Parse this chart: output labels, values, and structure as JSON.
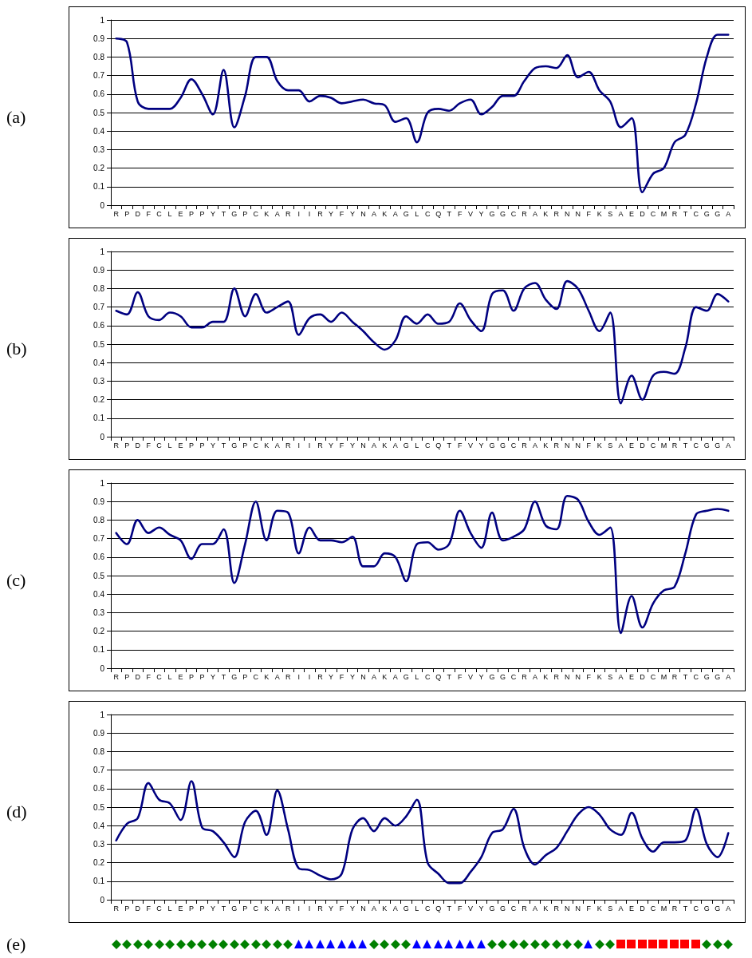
{
  "chart_data": [
    {
      "type": "line",
      "title": "(a)",
      "categories": [
        "R",
        "P",
        "D",
        "F",
        "C",
        "L",
        "E",
        "P",
        "P",
        "Y",
        "T",
        "G",
        "P",
        "C",
        "K",
        "A",
        "R",
        "I",
        "I",
        "R",
        "Y",
        "F",
        "Y",
        "N",
        "A",
        "K",
        "A",
        "G",
        "L",
        "C",
        "Q",
        "T",
        "F",
        "V",
        "Y",
        "G",
        "G",
        "C",
        "R",
        "A",
        "K",
        "R",
        "N",
        "N",
        "F",
        "K",
        "S",
        "A",
        "E",
        "D",
        "C",
        "M",
        "R",
        "T",
        "C",
        "G",
        "G",
        "A"
      ],
      "ylim": [
        0,
        1
      ],
      "yticks": [
        0,
        0.1,
        0.2,
        0.3,
        0.4,
        0.5,
        0.6,
        0.7,
        0.8,
        0.9,
        1
      ],
      "grid": "y",
      "marker": "none",
      "line_style": "solid",
      "series": [
        {
          "color": "#000080",
          "values": [
            0.9,
            0.88,
            0.56,
            0.52,
            0.52,
            0.52,
            0.58,
            0.68,
            0.6,
            0.49,
            0.73,
            0.42,
            0.59,
            0.8,
            0.8,
            0.67,
            0.62,
            0.62,
            0.56,
            0.59,
            0.58,
            0.55,
            0.56,
            0.57,
            0.55,
            0.54,
            0.45,
            0.47,
            0.34,
            0.5,
            0.52,
            0.51,
            0.55,
            0.57,
            0.49,
            0.53,
            0.59,
            0.59,
            0.67,
            0.74,
            0.75,
            0.74,
            0.81,
            0.69,
            0.72,
            0.62,
            0.56,
            0.42,
            0.47,
            0.07,
            0.17,
            0.2,
            0.34,
            0.38,
            0.55,
            0.8,
            0.92,
            0.92
          ]
        }
      ]
    },
    {
      "type": "line",
      "title": "(b)",
      "categories": [
        "R",
        "P",
        "D",
        "F",
        "C",
        "L",
        "E",
        "P",
        "P",
        "Y",
        "T",
        "G",
        "P",
        "C",
        "K",
        "A",
        "R",
        "I",
        "I",
        "R",
        "Y",
        "F",
        "Y",
        "N",
        "A",
        "K",
        "A",
        "G",
        "L",
        "C",
        "Q",
        "T",
        "F",
        "V",
        "Y",
        "G",
        "G",
        "C",
        "R",
        "A",
        "K",
        "R",
        "N",
        "N",
        "F",
        "K",
        "S",
        "A",
        "E",
        "D",
        "C",
        "M",
        "R",
        "T",
        "C",
        "G",
        "G",
        "A"
      ],
      "ylim": [
        0,
        1
      ],
      "yticks": [
        0,
        0.1,
        0.2,
        0.3,
        0.4,
        0.5,
        0.6,
        0.7,
        0.8,
        0.9,
        1
      ],
      "grid": "y",
      "marker": "none",
      "line_style": "solid",
      "series": [
        {
          "color": "#000080",
          "values": [
            0.68,
            0.66,
            0.78,
            0.65,
            0.63,
            0.67,
            0.65,
            0.59,
            0.59,
            0.62,
            0.62,
            0.8,
            0.65,
            0.77,
            0.67,
            0.7,
            0.73,
            0.55,
            0.64,
            0.66,
            0.62,
            0.67,
            0.62,
            0.57,
            0.51,
            0.47,
            0.52,
            0.65,
            0.61,
            0.66,
            0.61,
            0.62,
            0.72,
            0.63,
            0.57,
            0.77,
            0.79,
            0.68,
            0.8,
            0.83,
            0.74,
            0.69,
            0.84,
            0.8,
            0.68,
            0.57,
            0.67,
            0.18,
            0.33,
            0.2,
            0.33,
            0.35,
            0.34,
            0.48,
            0.7,
            0.68,
            0.77,
            0.73
          ]
        }
      ]
    },
    {
      "type": "line",
      "title": "(c)",
      "categories": [
        "R",
        "P",
        "D",
        "F",
        "C",
        "L",
        "E",
        "P",
        "P",
        "Y",
        "T",
        "G",
        "P",
        "C",
        "K",
        "A",
        "R",
        "I",
        "I",
        "R",
        "Y",
        "F",
        "Y",
        "N",
        "A",
        "K",
        "A",
        "G",
        "L",
        "C",
        "Q",
        "T",
        "F",
        "V",
        "Y",
        "G",
        "G",
        "C",
        "R",
        "A",
        "K",
        "R",
        "N",
        "N",
        "F",
        "K",
        "S",
        "A",
        "E",
        "D",
        "C",
        "M",
        "R",
        "T",
        "C",
        "G",
        "G",
        "A"
      ],
      "ylim": [
        0,
        1
      ],
      "yticks": [
        0,
        0.1,
        0.2,
        0.3,
        0.4,
        0.5,
        0.6,
        0.7,
        0.8,
        0.9,
        1
      ],
      "grid": "y",
      "marker": "none",
      "line_style": "solid",
      "series": [
        {
          "color": "#000080",
          "values": [
            0.73,
            0.67,
            0.8,
            0.73,
            0.76,
            0.72,
            0.69,
            0.59,
            0.67,
            0.67,
            0.75,
            0.46,
            0.67,
            0.9,
            0.69,
            0.85,
            0.84,
            0.62,
            0.76,
            0.69,
            0.69,
            0.68,
            0.71,
            0.55,
            0.55,
            0.62,
            0.6,
            0.47,
            0.67,
            0.68,
            0.64,
            0.67,
            0.85,
            0.73,
            0.65,
            0.84,
            0.69,
            0.71,
            0.75,
            0.9,
            0.77,
            0.75,
            0.93,
            0.91,
            0.79,
            0.72,
            0.76,
            0.19,
            0.39,
            0.22,
            0.35,
            0.42,
            0.44,
            0.62,
            0.83,
            0.85,
            0.86,
            0.85
          ]
        }
      ]
    },
    {
      "type": "line",
      "title": "(d)",
      "categories": [
        "R",
        "P",
        "D",
        "F",
        "C",
        "L",
        "E",
        "P",
        "P",
        "Y",
        "T",
        "G",
        "P",
        "C",
        "K",
        "A",
        "R",
        "I",
        "I",
        "R",
        "Y",
        "F",
        "Y",
        "N",
        "A",
        "K",
        "A",
        "G",
        "L",
        "C",
        "Q",
        "T",
        "F",
        "V",
        "Y",
        "G",
        "G",
        "C",
        "R",
        "A",
        "K",
        "R",
        "N",
        "N",
        "F",
        "K",
        "S",
        "A",
        "E",
        "D",
        "C",
        "M",
        "R",
        "T",
        "C",
        "G",
        "G",
        "A"
      ],
      "ylim": [
        0,
        1
      ],
      "yticks": [
        0,
        0.1,
        0.2,
        0.3,
        0.4,
        0.5,
        0.6,
        0.7,
        0.8,
        0.9,
        1
      ],
      "grid": "y",
      "marker": "none",
      "line_style": "solid",
      "series": [
        {
          "color": "#000080",
          "values": [
            0.32,
            0.41,
            0.44,
            0.63,
            0.54,
            0.52,
            0.43,
            0.64,
            0.39,
            0.37,
            0.31,
            0.23,
            0.42,
            0.48,
            0.35,
            0.59,
            0.38,
            0.17,
            0.16,
            0.13,
            0.11,
            0.14,
            0.38,
            0.44,
            0.37,
            0.44,
            0.4,
            0.45,
            0.54,
            0.2,
            0.14,
            0.09,
            0.09,
            0.15,
            0.23,
            0.36,
            0.38,
            0.49,
            0.28,
            0.19,
            0.24,
            0.28,
            0.37,
            0.46,
            0.5,
            0.46,
            0.38,
            0.35,
            0.47,
            0.33,
            0.26,
            0.31,
            0.31,
            0.32,
            0.49,
            0.3,
            0.23,
            0.36
          ]
        }
      ]
    },
    {
      "type": "other",
      "title": "(e)"
    }
  ]
}
